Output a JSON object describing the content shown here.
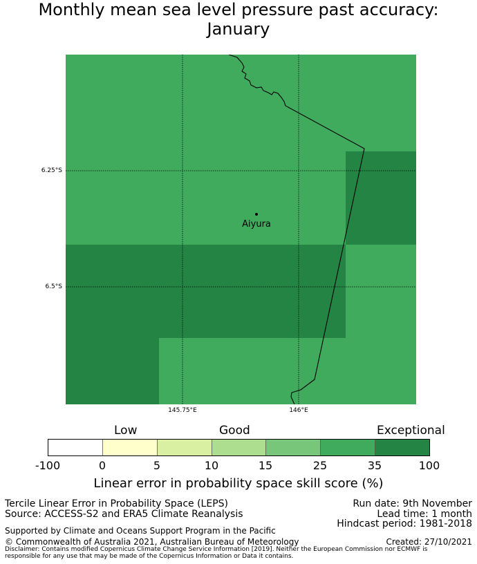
{
  "title": {
    "line1": "Monthly mean sea level pressure past accuracy:",
    "line2": "January"
  },
  "map": {
    "place_name": "Aiyura",
    "lat_labels": [
      "6.25°S",
      "6.5°S"
    ],
    "lon_labels": [
      "145.75°E",
      "146°E"
    ],
    "cell_colors": {
      "25-35": "#41ab5d",
      "35-100": "#238443"
    }
  },
  "colorbar": {
    "category_labels": [
      "Low",
      "Good",
      "Exceptional"
    ],
    "tick_labels": [
      "-100",
      "0",
      "5",
      "10",
      "15",
      "25",
      "35",
      "100"
    ],
    "colors": [
      "#ffffff",
      "#ffffcc",
      "#d9f0a3",
      "#addd8e",
      "#78c679",
      "#41ab5d",
      "#238443"
    ],
    "title": "Linear error in probability space skill score (%)"
  },
  "footer": {
    "left1": "Tercile Linear Error in Probability Space (LEPS)",
    "left2": "Source: ACCESS-S2 and ERA5 Climate Reanalysis",
    "right1": "Run date: 9th November",
    "right2": "Lead time: 1 month",
    "right3": "Hindcast period: 1981-2018",
    "support": "Supported by Climate and Oceans Support Program in the Pacific",
    "copyright": "© Commonwealth of Australia 2021, Australian Bureau of Meteorology",
    "created": "Created: 27/10/2021",
    "disclaimer": "Disclaimer: Contains modified Copernicus Climate Change Service Information [2019]. Neither the European Commission nor ECMWF is responsible for any use that may be made of the Copernicus Information or Data it contains."
  }
}
